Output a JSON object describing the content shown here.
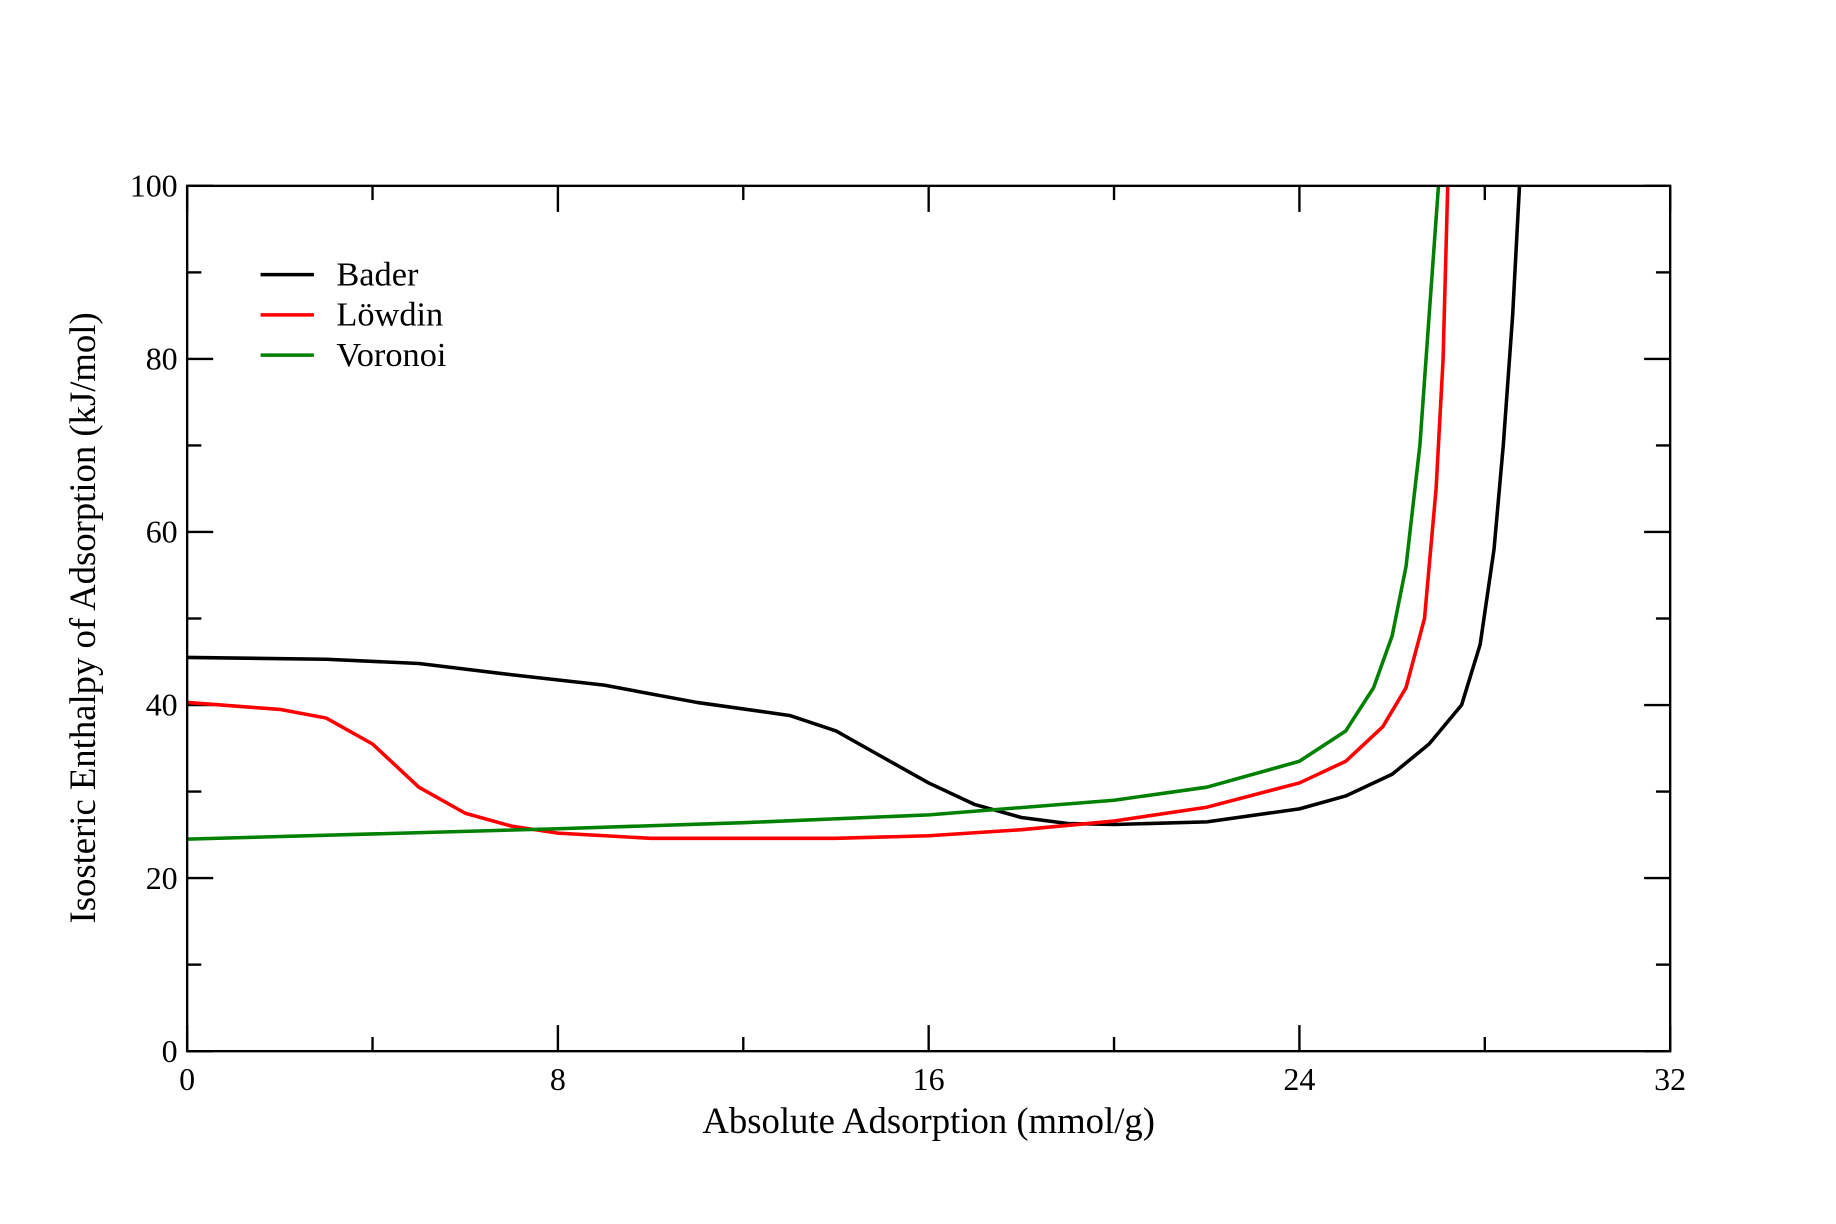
{
  "chart_data": {
    "type": "line",
    "title": "",
    "xlabel": "Absolute Adsorption (mmol/g)",
    "ylabel": "Isosteric Enthalpy of Adsorption (kJ/mol)",
    "xlim": [
      0,
      32
    ],
    "ylim": [
      0,
      100
    ],
    "xticks": [
      0,
      8,
      16,
      24,
      32
    ],
    "yticks": [
      0,
      20,
      40,
      60,
      80,
      100
    ],
    "x_minor_step": 4,
    "y_minor_step": 10,
    "grid": false,
    "legend_position": "top-left",
    "series": [
      {
        "name": "Bader",
        "color": "#000000",
        "points": [
          [
            0,
            45.5
          ],
          [
            3,
            45.3
          ],
          [
            5,
            44.8
          ],
          [
            7,
            43.5
          ],
          [
            9,
            42.3
          ],
          [
            11,
            40.3
          ],
          [
            13,
            38.8
          ],
          [
            14,
            37
          ],
          [
            15,
            34
          ],
          [
            16,
            31
          ],
          [
            17,
            28.5
          ],
          [
            18,
            27
          ],
          [
            19,
            26.3
          ],
          [
            20,
            26.2
          ],
          [
            22,
            26.5
          ],
          [
            24,
            28
          ],
          [
            25,
            29.5
          ],
          [
            26,
            32
          ],
          [
            26.8,
            35.5
          ],
          [
            27.5,
            40
          ],
          [
            27.9,
            47
          ],
          [
            28.2,
            58
          ],
          [
            28.4,
            70
          ],
          [
            28.6,
            85
          ],
          [
            28.75,
            100
          ]
        ]
      },
      {
        "name": "Löwdin",
        "color": "#ff0000",
        "points": [
          [
            0,
            40.3
          ],
          [
            2,
            39.5
          ],
          [
            3,
            38.5
          ],
          [
            4,
            35.5
          ],
          [
            5,
            30.5
          ],
          [
            6,
            27.5
          ],
          [
            7,
            26
          ],
          [
            8,
            25.2
          ],
          [
            10,
            24.6
          ],
          [
            14,
            24.6
          ],
          [
            16,
            24.9
          ],
          [
            18,
            25.6
          ],
          [
            20,
            26.6
          ],
          [
            22,
            28.2
          ],
          [
            24,
            31
          ],
          [
            25,
            33.5
          ],
          [
            25.8,
            37.5
          ],
          [
            26.3,
            42
          ],
          [
            26.7,
            50
          ],
          [
            26.95,
            65
          ],
          [
            27.1,
            80
          ],
          [
            27.2,
            100
          ]
        ]
      },
      {
        "name": "Voronoi",
        "color": "#008000",
        "points": [
          [
            0,
            24.5
          ],
          [
            4,
            25.1
          ],
          [
            8,
            25.7
          ],
          [
            12,
            26.4
          ],
          [
            16,
            27.3
          ],
          [
            20,
            29
          ],
          [
            22,
            30.5
          ],
          [
            24,
            33.5
          ],
          [
            25,
            37
          ],
          [
            25.6,
            42
          ],
          [
            26,
            48
          ],
          [
            26.3,
            56
          ],
          [
            26.6,
            70
          ],
          [
            26.8,
            85
          ],
          [
            27,
            100
          ]
        ]
      }
    ]
  }
}
